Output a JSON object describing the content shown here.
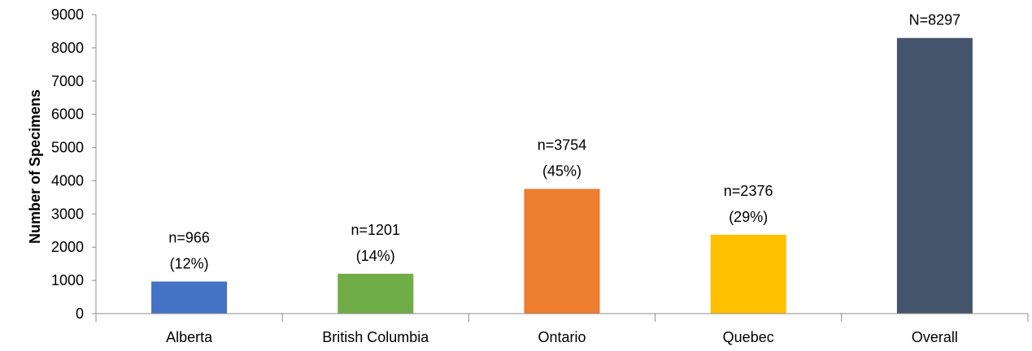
{
  "chart_data": {
    "type": "bar",
    "title": "",
    "xlabel": "",
    "ylabel": "Number of Specimens",
    "ylim": [
      0,
      9000
    ],
    "yticks": [
      0,
      1000,
      2000,
      3000,
      4000,
      5000,
      6000,
      7000,
      8000,
      9000
    ],
    "grid": false,
    "legend": "none",
    "categories": [
      "Alberta",
      "British Columbia",
      "Ontario",
      "Quebec",
      "Overall"
    ],
    "values": [
      966,
      1201,
      3754,
      2376,
      8297
    ],
    "colors": [
      "#4472c4",
      "#70ad47",
      "#ed7d31",
      "#ffc000",
      "#44546a"
    ],
    "data_labels": [
      [
        "n=966",
        "(12%)"
      ],
      [
        "n=1201",
        "(14%)"
      ],
      [
        "n=3754",
        "(45%)"
      ],
      [
        "n=2376",
        "(29%)"
      ],
      [
        "N=8297"
      ]
    ]
  }
}
